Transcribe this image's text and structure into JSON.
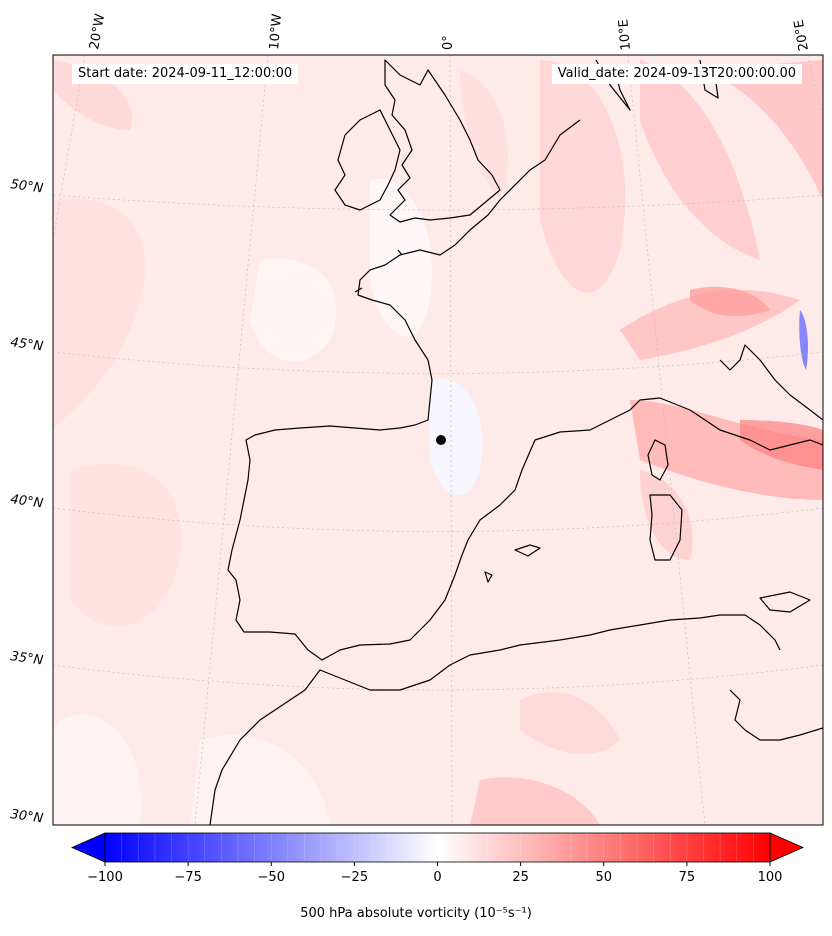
{
  "header": {
    "start_date": "Start date: 2024-09-11_12:00:00",
    "valid_date": "Valid_date: 2024-09-13T20:00:00.00"
  },
  "map": {
    "projection": "conic",
    "extent": {
      "lon_min": -21,
      "lon_max": 22,
      "lat_min": 30,
      "lat_max": 54
    },
    "field": "500 hPa absolute vorticity",
    "meridian_labels": [
      "20°W",
      "10°W",
      "0°",
      "10°E",
      "20°E"
    ],
    "parallel_labels": [
      "50°N",
      "45°N",
      "40°N",
      "35°N",
      "30°N"
    ],
    "gridlines": true,
    "colormap": "bwr",
    "colors": {
      "negative": "#0000ff",
      "zero": "#ffffff",
      "positive": "#ff0000",
      "coastline": "#000000"
    }
  },
  "colorbar": {
    "label": "500 hPa absolute vorticity (10⁻⁵s⁻¹)",
    "range": [
      -100,
      100
    ],
    "extend": "both",
    "ticks": [
      "−100",
      "−75",
      "−50",
      "−25",
      "0",
      "25",
      "50",
      "75",
      "100"
    ],
    "levels": 41
  }
}
